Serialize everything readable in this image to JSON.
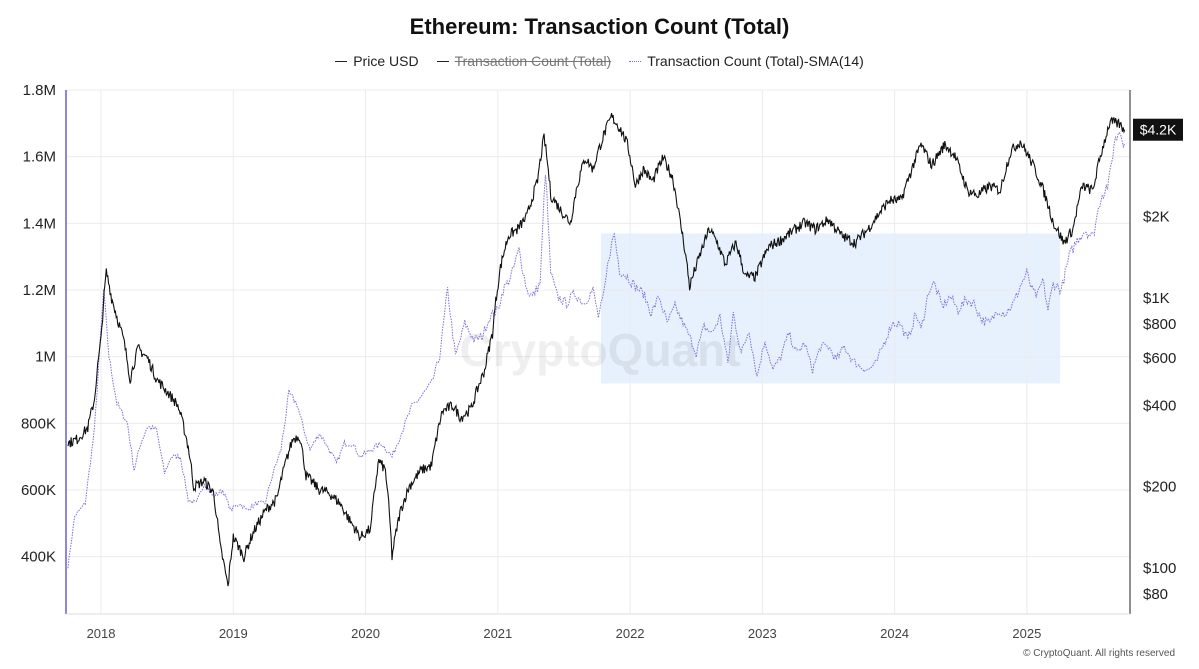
{
  "title": "Ethereum: Transaction Count (Total)",
  "legend": [
    {
      "label": "Price USD",
      "style": "solid",
      "color": "#222222",
      "disabled": false
    },
    {
      "label": "Transaction Count (Total)",
      "style": "solid",
      "color": "#222222",
      "disabled": true
    },
    {
      "label": "Transaction Count (Total)-SMA(14)",
      "style": "dotted",
      "color": "#7b6fd6",
      "disabled": false
    }
  ],
  "watermark": "CryptoQuant",
  "copyright": "© CryptoQuant. All rights reserved",
  "last_price_badge": "$4.2K",
  "colors": {
    "price_line": "#111111",
    "sma_line": "#7b6fd6",
    "highlight_box": "#e6f1fd",
    "grid": "#ececec",
    "left_axis_bar": "#8f86e0"
  },
  "chart_data": {
    "type": "line",
    "title": "Ethereum: Transaction Count (Total)",
    "x_axis": {
      "type": "date",
      "range": [
        "2017-09-25",
        "2025-10-01"
      ],
      "tick_labels": [
        "2018",
        "2019",
        "2020",
        "2021",
        "2022",
        "2023",
        "2024",
        "2025"
      ],
      "tick_values": [
        2018,
        2019,
        2020,
        2021,
        2022,
        2023,
        2024,
        2025
      ]
    },
    "y_left": {
      "label": "",
      "range": [
        300000,
        1800000
      ],
      "ticks": [
        400000,
        600000,
        800000,
        1000000,
        1200000,
        1400000,
        1600000,
        1800000
      ],
      "tick_labels": [
        "400K",
        "600K",
        "800K",
        "1M",
        "1.2M",
        "1.4M",
        "1.6M",
        "1.8M"
      ]
    },
    "y_right": {
      "label": "",
      "scale": "log",
      "ticks": [
        80,
        100,
        200,
        400,
        600,
        800,
        1000,
        2000
      ],
      "tick_labels": [
        "$80",
        "$100",
        "$200",
        "$400",
        "$600",
        "$800",
        "$1K",
        "$2K"
      ]
    },
    "grid": true,
    "highlight_region": {
      "x_range": [
        2021.78,
        2025.25
      ],
      "y_range": [
        920000,
        1370000
      ]
    },
    "series": [
      {
        "name": "Price USD",
        "axis": "right",
        "points": [
          [
            2017.75,
            290
          ],
          [
            2017.82,
            300
          ],
          [
            2017.9,
            330
          ],
          [
            2017.95,
            420
          ],
          [
            2018.0,
            700
          ],
          [
            2018.04,
            1250
          ],
          [
            2018.08,
            1000
          ],
          [
            2018.12,
            850
          ],
          [
            2018.17,
            700
          ],
          [
            2018.22,
            500
          ],
          [
            2018.28,
            650
          ],
          [
            2018.35,
            600
          ],
          [
            2018.42,
            500
          ],
          [
            2018.5,
            450
          ],
          [
            2018.58,
            400
          ],
          [
            2018.66,
            280
          ],
          [
            2018.7,
            200
          ],
          [
            2018.78,
            210
          ],
          [
            2018.85,
            190
          ],
          [
            2018.9,
            120
          ],
          [
            2018.96,
            85
          ],
          [
            2019.0,
            130
          ],
          [
            2019.08,
            110
          ],
          [
            2019.15,
            135
          ],
          [
            2019.25,
            165
          ],
          [
            2019.33,
            180
          ],
          [
            2019.4,
            250
          ],
          [
            2019.45,
            300
          ],
          [
            2019.5,
            310
          ],
          [
            2019.55,
            220
          ],
          [
            2019.65,
            195
          ],
          [
            2019.72,
            190
          ],
          [
            2019.8,
            175
          ],
          [
            2019.88,
            150
          ],
          [
            2019.96,
            130
          ],
          [
            2020.04,
            140
          ],
          [
            2020.1,
            250
          ],
          [
            2020.15,
            230
          ],
          [
            2020.2,
            110
          ],
          [
            2020.26,
            160
          ],
          [
            2020.33,
            200
          ],
          [
            2020.42,
            230
          ],
          [
            2020.5,
            240
          ],
          [
            2020.58,
            380
          ],
          [
            2020.66,
            400
          ],
          [
            2020.72,
            360
          ],
          [
            2020.8,
            390
          ],
          [
            2020.9,
            540
          ],
          [
            2020.96,
            740
          ],
          [
            2021.02,
            1300
          ],
          [
            2021.08,
            1700
          ],
          [
            2021.15,
            1800
          ],
          [
            2021.22,
            2000
          ],
          [
            2021.3,
            2700
          ],
          [
            2021.35,
            3950
          ],
          [
            2021.4,
            2400
          ],
          [
            2021.48,
            2100
          ],
          [
            2021.55,
            1900
          ],
          [
            2021.6,
            2600
          ],
          [
            2021.66,
            3300
          ],
          [
            2021.72,
            3000
          ],
          [
            2021.8,
            4000
          ],
          [
            2021.86,
            4700
          ],
          [
            2021.93,
            4200
          ],
          [
            2021.98,
            3700
          ],
          [
            2022.04,
            2600
          ],
          [
            2022.1,
            3000
          ],
          [
            2022.17,
            2700
          ],
          [
            2022.25,
            3300
          ],
          [
            2022.32,
            2800
          ],
          [
            2022.38,
            1900
          ],
          [
            2022.45,
            1100
          ],
          [
            2022.52,
            1400
          ],
          [
            2022.6,
            1800
          ],
          [
            2022.66,
            1600
          ],
          [
            2022.72,
            1330
          ],
          [
            2022.8,
            1600
          ],
          [
            2022.87,
            1200
          ],
          [
            2022.95,
            1200
          ],
          [
            2023.05,
            1550
          ],
          [
            2023.15,
            1650
          ],
          [
            2023.25,
            1800
          ],
          [
            2023.32,
            1900
          ],
          [
            2023.4,
            1800
          ],
          [
            2023.5,
            1950
          ],
          [
            2023.6,
            1700
          ],
          [
            2023.7,
            1600
          ],
          [
            2023.8,
            1800
          ],
          [
            2023.88,
            2050
          ],
          [
            2023.96,
            2300
          ],
          [
            2024.05,
            2300
          ],
          [
            2024.12,
            2900
          ],
          [
            2024.2,
            3700
          ],
          [
            2024.28,
            3100
          ],
          [
            2024.38,
            3700
          ],
          [
            2024.45,
            3400
          ],
          [
            2024.55,
            2500
          ],
          [
            2024.63,
            2400
          ],
          [
            2024.72,
            2600
          ],
          [
            2024.8,
            2500
          ],
          [
            2024.88,
            3500
          ],
          [
            2024.95,
            3800
          ],
          [
            2025.02,
            3300
          ],
          [
            2025.1,
            2700
          ],
          [
            2025.2,
            1900
          ],
          [
            2025.28,
            1600
          ],
          [
            2025.35,
            1800
          ],
          [
            2025.42,
            2600
          ],
          [
            2025.5,
            2500
          ],
          [
            2025.58,
            3700
          ],
          [
            2025.63,
            4500
          ],
          [
            2025.7,
            4400
          ],
          [
            2025.74,
            4200
          ]
        ]
      },
      {
        "name": "Transaction Count (Total)-SMA(14)",
        "axis": "left",
        "points": [
          [
            2017.75,
            370000
          ],
          [
            2017.8,
            520000
          ],
          [
            2017.88,
            560000
          ],
          [
            2017.95,
            780000
          ],
          [
            2018.02,
            1200000
          ],
          [
            2018.06,
            1000000
          ],
          [
            2018.12,
            860000
          ],
          [
            2018.2,
            800000
          ],
          [
            2018.25,
            660000
          ],
          [
            2018.3,
            740000
          ],
          [
            2018.35,
            790000
          ],
          [
            2018.42,
            780000
          ],
          [
            2018.48,
            650000
          ],
          [
            2018.53,
            700000
          ],
          [
            2018.6,
            700000
          ],
          [
            2018.66,
            570000
          ],
          [
            2018.72,
            560000
          ],
          [
            2018.78,
            620000
          ],
          [
            2018.85,
            580000
          ],
          [
            2018.92,
            600000
          ],
          [
            2018.98,
            540000
          ],
          [
            2019.05,
            560000
          ],
          [
            2019.1,
            540000
          ],
          [
            2019.18,
            560000
          ],
          [
            2019.24,
            560000
          ],
          [
            2019.3,
            650000
          ],
          [
            2019.36,
            720000
          ],
          [
            2019.42,
            890000
          ],
          [
            2019.48,
            860000
          ],
          [
            2019.52,
            800000
          ],
          [
            2019.58,
            720000
          ],
          [
            2019.65,
            770000
          ],
          [
            2019.7,
            740000
          ],
          [
            2019.78,
            680000
          ],
          [
            2019.84,
            740000
          ],
          [
            2019.9,
            740000
          ],
          [
            2019.96,
            700000
          ],
          [
            2020.04,
            720000
          ],
          [
            2020.12,
            740000
          ],
          [
            2020.2,
            700000
          ],
          [
            2020.28,
            780000
          ],
          [
            2020.35,
            850000
          ],
          [
            2020.42,
            880000
          ],
          [
            2020.5,
            920000
          ],
          [
            2020.56,
            1000000
          ],
          [
            2020.62,
            1200000
          ],
          [
            2020.68,
            1000000
          ],
          [
            2020.75,
            1100000
          ],
          [
            2020.82,
            1050000
          ],
          [
            2020.88,
            1060000
          ],
          [
            2020.94,
            1120000
          ],
          [
            2021.0,
            1140000
          ],
          [
            2021.04,
            1200000
          ],
          [
            2021.1,
            1240000
          ],
          [
            2021.16,
            1320000
          ],
          [
            2021.22,
            1200000
          ],
          [
            2021.26,
            1180000
          ],
          [
            2021.32,
            1220000
          ],
          [
            2021.36,
            1560000
          ],
          [
            2021.4,
            1250000
          ],
          [
            2021.45,
            1180000
          ],
          [
            2021.52,
            1160000
          ],
          [
            2021.58,
            1190000
          ],
          [
            2021.65,
            1160000
          ],
          [
            2021.72,
            1200000
          ],
          [
            2021.76,
            1120000
          ],
          [
            2021.8,
            1180000
          ],
          [
            2021.84,
            1300000
          ],
          [
            2021.88,
            1370000
          ],
          [
            2021.92,
            1260000
          ],
          [
            2021.98,
            1240000
          ],
          [
            2022.04,
            1210000
          ],
          [
            2022.1,
            1190000
          ],
          [
            2022.16,
            1130000
          ],
          [
            2022.22,
            1180000
          ],
          [
            2022.28,
            1100000
          ],
          [
            2022.34,
            1150000
          ],
          [
            2022.4,
            1100000
          ],
          [
            2022.45,
            1060000
          ],
          [
            2022.5,
            1010000
          ],
          [
            2022.56,
            1090000
          ],
          [
            2022.62,
            1070000
          ],
          [
            2022.68,
            1120000
          ],
          [
            2022.74,
            980000
          ],
          [
            2022.78,
            1130000
          ],
          [
            2022.84,
            1010000
          ],
          [
            2022.9,
            1080000
          ],
          [
            2022.96,
            940000
          ],
          [
            2023.02,
            1050000
          ],
          [
            2023.08,
            960000
          ],
          [
            2023.14,
            1000000
          ],
          [
            2023.2,
            1070000
          ],
          [
            2023.26,
            1010000
          ],
          [
            2023.32,
            1040000
          ],
          [
            2023.38,
            960000
          ],
          [
            2023.44,
            1030000
          ],
          [
            2023.5,
            1030000
          ],
          [
            2023.56,
            990000
          ],
          [
            2023.62,
            1030000
          ],
          [
            2023.68,
            990000
          ],
          [
            2023.74,
            970000
          ],
          [
            2023.8,
            960000
          ],
          [
            2023.86,
            980000
          ],
          [
            2023.92,
            1040000
          ],
          [
            2023.98,
            1100000
          ],
          [
            2024.04,
            1100000
          ],
          [
            2024.1,
            1050000
          ],
          [
            2024.16,
            1130000
          ],
          [
            2024.2,
            1080000
          ],
          [
            2024.26,
            1200000
          ],
          [
            2024.3,
            1220000
          ],
          [
            2024.36,
            1150000
          ],
          [
            2024.42,
            1180000
          ],
          [
            2024.48,
            1140000
          ],
          [
            2024.54,
            1170000
          ],
          [
            2024.6,
            1160000
          ],
          [
            2024.66,
            1110000
          ],
          [
            2024.72,
            1100000
          ],
          [
            2024.78,
            1140000
          ],
          [
            2024.84,
            1130000
          ],
          [
            2024.9,
            1160000
          ],
          [
            2024.96,
            1220000
          ],
          [
            2025.0,
            1250000
          ],
          [
            2025.04,
            1200000
          ],
          [
            2025.08,
            1180000
          ],
          [
            2025.12,
            1230000
          ],
          [
            2025.16,
            1140000
          ],
          [
            2025.2,
            1220000
          ],
          [
            2025.26,
            1200000
          ],
          [
            2025.32,
            1300000
          ],
          [
            2025.38,
            1350000
          ],
          [
            2025.44,
            1380000
          ],
          [
            2025.5,
            1360000
          ],
          [
            2025.56,
            1480000
          ],
          [
            2025.62,
            1520000
          ],
          [
            2025.66,
            1640000
          ],
          [
            2025.7,
            1680000
          ],
          [
            2025.74,
            1640000
          ]
        ]
      }
    ]
  }
}
